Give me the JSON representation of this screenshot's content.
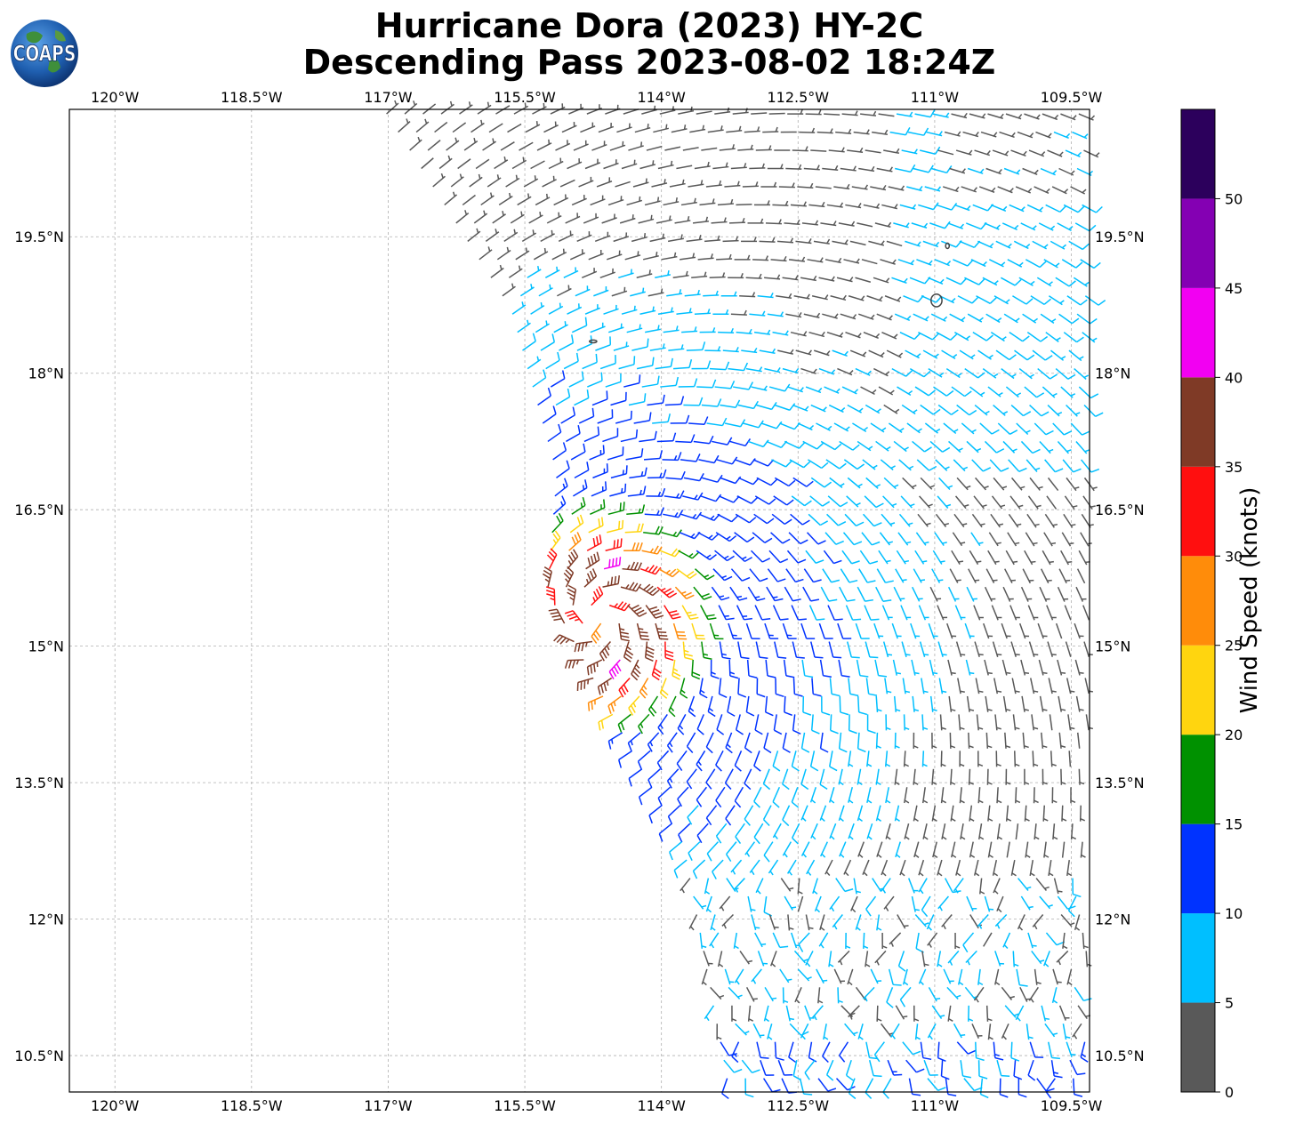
{
  "title": {
    "line1": "Hurricane Dora (2023) HY-2C",
    "line2": "Descending Pass 2023-08-02 18:24Z"
  },
  "logo": {
    "text": "COAPS"
  },
  "map": {
    "lon_range": [
      -120.5,
      -109.3
    ],
    "lat_range": [
      10.1,
      20.9
    ],
    "lon_ticks": [
      {
        "value": -120.0,
        "label": "120°W"
      },
      {
        "value": -118.5,
        "label": "118.5°W"
      },
      {
        "value": -117.0,
        "label": "117°W"
      },
      {
        "value": -115.5,
        "label": "115.5°W"
      },
      {
        "value": -114.0,
        "label": "114°W"
      },
      {
        "value": -112.5,
        "label": "112.5°W"
      },
      {
        "value": -111.0,
        "label": "111°W"
      },
      {
        "value": -109.5,
        "label": "109.5°W"
      }
    ],
    "lat_ticks": [
      {
        "value": 19.5,
        "label": "19.5°N"
      },
      {
        "value": 18.0,
        "label": "18°N"
      },
      {
        "value": 16.5,
        "label": "16.5°N"
      },
      {
        "value": 15.0,
        "label": "15°N"
      },
      {
        "value": 13.5,
        "label": "13.5°N"
      },
      {
        "value": 12.0,
        "label": "12°N"
      },
      {
        "value": 10.5,
        "label": "10.5°N"
      }
    ],
    "gridlines": true,
    "storm_center": {
      "lon": -114.7,
      "lat": 15.3
    },
    "swath_west_edge": [
      [
        -117.1,
        20.9
      ],
      [
        -115.7,
        18.7
      ],
      [
        -115.2,
        16.9
      ],
      [
        -115.3,
        15.6
      ],
      [
        -114.4,
        13.9
      ],
      [
        -113.8,
        12.8
      ],
      [
        -113.3,
        10.1
      ]
    ],
    "land_outlines": [
      {
        "lon": -110.98,
        "lat": 18.8,
        "rx": 0.06,
        "ry": 0.07
      },
      {
        "lon": -110.86,
        "lat": 19.4,
        "rx": 0.02,
        "ry": 0.03
      },
      {
        "lon": -114.75,
        "lat": 18.35,
        "rx": 0.04,
        "ry": 0.015
      }
    ]
  },
  "colorbar": {
    "label": "Wind Speed (knots)",
    "bins": [
      {
        "from": 0,
        "to": 5,
        "color": "#595959"
      },
      {
        "from": 5,
        "to": 10,
        "color": "#00bfff"
      },
      {
        "from": 10,
        "to": 15,
        "color": "#0033ff"
      },
      {
        "from": 15,
        "to": 20,
        "color": "#009100"
      },
      {
        "from": 20,
        "to": 25,
        "color": "#ffd50f"
      },
      {
        "from": 25,
        "to": 30,
        "color": "#ff8c0a"
      },
      {
        "from": 30,
        "to": 35,
        "color": "#ff0f0f"
      },
      {
        "from": 35,
        "to": 40,
        "color": "#7f3a26"
      },
      {
        "from": 40,
        "to": 45,
        "color": "#f200f2"
      },
      {
        "from": 45,
        "to": 50,
        "color": "#8400b3"
      },
      {
        "from": 50,
        "to": 55,
        "color": "#2c005c"
      }
    ],
    "tick_labels": [
      "0",
      "5",
      "10",
      "15",
      "20",
      "25",
      "30",
      "35",
      "40",
      "45",
      "50"
    ]
  }
}
